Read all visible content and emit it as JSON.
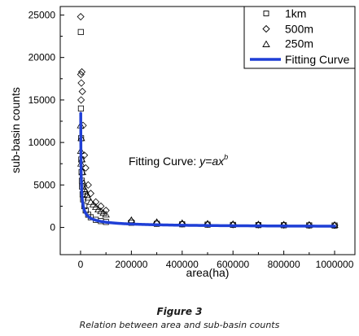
{
  "chart_data": {
    "type": "scatter",
    "xlabel": "area(ha)",
    "ylabel": "sub-basin counts",
    "xlim": [
      -80000,
      1080000
    ],
    "ylim": [
      -3200,
      26000
    ],
    "x_ticks": [
      0,
      200000,
      400000,
      600000,
      800000,
      1000000
    ],
    "x_tick_labels": [
      "0",
      "200000",
      "400000",
      "600000",
      "800000",
      "1000000"
    ],
    "y_ticks": [
      0,
      5000,
      10000,
      15000,
      20000,
      25000
    ],
    "y_tick_labels": [
      "0",
      "5000",
      "10000",
      "15000",
      "20000",
      "25000"
    ],
    "grid": false,
    "legend_position": "top-right",
    "annotation": {
      "prefix": "Fitting Curve: ",
      "formula_base": "y=ax",
      "formula_exponent": "b"
    },
    "series": [
      {
        "name": "1km",
        "marker": "square",
        "x": [
          1000,
          1500,
          2000,
          3000,
          4000,
          5000,
          6000,
          8000,
          10000,
          15000,
          20000,
          30000,
          40000,
          60000,
          80000,
          100000,
          200000,
          300000,
          400000,
          500000,
          600000,
          700000,
          800000,
          900000,
          1000000
        ],
        "y": [
          23000,
          14000,
          10500,
          8000,
          6500,
          5500,
          4800,
          3900,
          3300,
          2500,
          2000,
          1500,
          1200,
          900,
          750,
          650,
          550,
          430,
          370,
          330,
          300,
          280,
          260,
          245,
          230
        ]
      },
      {
        "name": "500m",
        "marker": "diamond",
        "x": [
          500,
          1000,
          2000,
          3000,
          5000,
          7000,
          10000,
          15000,
          20000,
          30000,
          40000,
          60000,
          80000,
          100000,
          200000,
          300000,
          400000,
          500000,
          600000,
          700000,
          800000,
          900000,
          1000000
        ],
        "y": [
          24800,
          18000,
          15000,
          17000,
          18300,
          16000,
          12000,
          8500,
          7000,
          5000,
          4000,
          3000,
          2500,
          2000,
          750,
          520,
          430,
          380,
          340,
          310,
          290,
          270,
          255
        ]
      },
      {
        "name": "250m",
        "marker": "triangle",
        "x": [
          500,
          1000,
          2000,
          3000,
          5000,
          8000,
          12000,
          16000,
          20000,
          25000,
          30000,
          40000,
          50000,
          60000,
          70000,
          80000,
          90000,
          100000,
          200000,
          300000,
          400000,
          500000,
          600000,
          700000,
          800000,
          900000,
          1000000
        ],
        "y": [
          12000,
          9000,
          7500,
          10500,
          8000,
          6500,
          5200,
          4500,
          4200,
          3800,
          3500,
          3000,
          2700,
          2400,
          2100,
          1900,
          1700,
          1500,
          850,
          620,
          500,
          430,
          380,
          350,
          320,
          300,
          280
        ]
      },
      {
        "name": "Fitting Curve",
        "marker": "line",
        "color": "#1f3fd6",
        "coef_a": 780000,
        "exponent_b": -0.62
      }
    ]
  },
  "caption": {
    "title": "Figure 3",
    "text": "Relation between area and sub-basin counts"
  }
}
